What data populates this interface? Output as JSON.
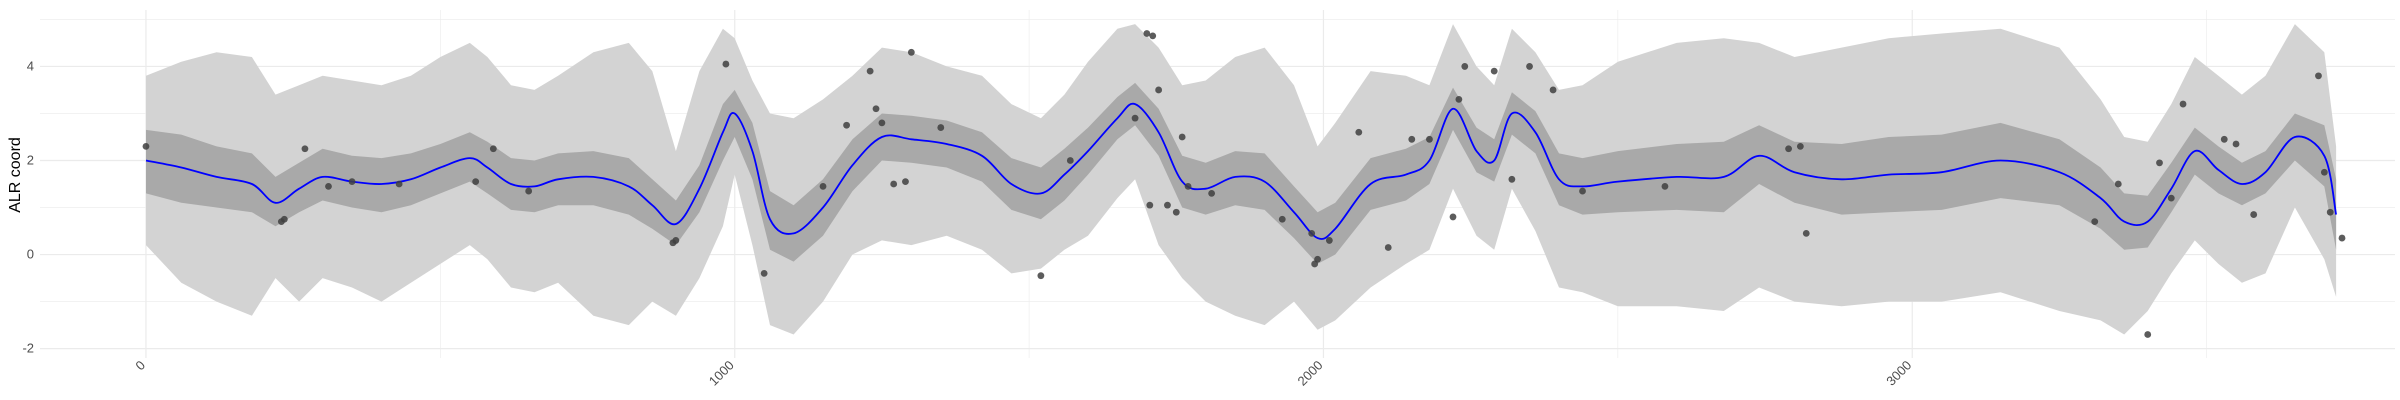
{
  "chart_data": {
    "type": "line",
    "title": "",
    "xlabel": "",
    "ylabel": "ALR coord",
    "xlim": [
      -180,
      3820
    ],
    "ylim": [
      -2.2,
      5.2
    ],
    "x_ticks": [
      0,
      1000,
      2000,
      3000
    ],
    "x_tick_labels": [
      "0",
      "1000",
      "2000",
      "3000"
    ],
    "y_ticks": [
      -2,
      0,
      2,
      4
    ],
    "y_tick_labels": [
      "-2",
      "0",
      "2",
      "4"
    ],
    "grid": true,
    "legend": "none",
    "colors": {
      "mean_line": "#0000ff",
      "inner_band": "#a9a9a9",
      "outer_band": "#d3d3d3",
      "points": "#404040",
      "grid": "#ebebeb"
    },
    "series": [
      {
        "kind": "mean",
        "x": [
          0,
          60,
          120,
          180,
          220,
          260,
          300,
          350,
          400,
          450,
          500,
          550,
          580,
          620,
          660,
          700,
          760,
          820,
          860,
          900,
          940,
          980,
          1000,
          1030,
          1060,
          1100,
          1150,
          1200,
          1250,
          1300,
          1360,
          1420,
          1470,
          1520,
          1560,
          1600,
          1650,
          1680,
          1720,
          1760,
          1800,
          1850,
          1900,
          1950,
          1990,
          2020,
          2080,
          2140,
          2180,
          2220,
          2260,
          2290,
          2320,
          2360,
          2400,
          2440,
          2500,
          2600,
          2680,
          2740,
          2800,
          2880,
          2960,
          3050,
          3150,
          3250,
          3320,
          3360,
          3400,
          3440,
          3480,
          3520,
          3560,
          3600,
          3650,
          3700,
          3720
        ],
        "y": [
          2.0,
          1.85,
          1.65,
          1.5,
          1.1,
          1.4,
          1.65,
          1.55,
          1.5,
          1.6,
          1.85,
          2.05,
          1.85,
          1.5,
          1.45,
          1.6,
          1.65,
          1.45,
          1.05,
          0.65,
          1.4,
          2.6,
          3.0,
          2.2,
          0.75,
          0.45,
          1.0,
          1.9,
          2.5,
          2.45,
          2.35,
          2.1,
          1.5,
          1.3,
          1.7,
          2.2,
          2.9,
          3.2,
          2.6,
          1.55,
          1.4,
          1.65,
          1.55,
          0.9,
          0.35,
          0.55,
          1.5,
          1.7,
          2.0,
          3.1,
          2.2,
          2.0,
          3.0,
          2.6,
          1.6,
          1.45,
          1.55,
          1.65,
          1.65,
          2.1,
          1.75,
          1.6,
          1.7,
          1.75,
          2.0,
          1.75,
          1.2,
          0.7,
          0.7,
          1.4,
          2.2,
          1.8,
          1.5,
          1.75,
          2.5,
          2.1,
          0.85
        ]
      },
      {
        "kind": "inner_band",
        "x": [
          0,
          60,
          120,
          180,
          220,
          260,
          300,
          350,
          400,
          450,
          500,
          550,
          580,
          620,
          660,
          700,
          760,
          820,
          860,
          900,
          940,
          980,
          1000,
          1030,
          1060,
          1100,
          1150,
          1200,
          1250,
          1300,
          1360,
          1420,
          1470,
          1520,
          1560,
          1600,
          1650,
          1680,
          1720,
          1760,
          1800,
          1850,
          1900,
          1950,
          1990,
          2020,
          2080,
          2140,
          2180,
          2220,
          2260,
          2290,
          2320,
          2360,
          2400,
          2440,
          2500,
          2600,
          2680,
          2740,
          2800,
          2880,
          2960,
          3050,
          3150,
          3250,
          3320,
          3360,
          3400,
          3440,
          3480,
          3520,
          3560,
          3600,
          3650,
          3700,
          3720
        ],
        "lower": [
          1.3,
          1.1,
          1.0,
          0.9,
          0.6,
          0.9,
          1.15,
          1.0,
          0.9,
          1.05,
          1.3,
          1.55,
          1.3,
          0.95,
          0.9,
          1.05,
          1.05,
          0.85,
          0.55,
          0.2,
          0.9,
          2.0,
          2.5,
          1.6,
          0.1,
          -0.15,
          0.4,
          1.35,
          2.0,
          1.95,
          1.85,
          1.55,
          0.95,
          0.75,
          1.15,
          1.7,
          2.45,
          2.75,
          2.1,
          1.0,
          0.85,
          1.05,
          0.95,
          0.35,
          -0.2,
          0.0,
          0.95,
          1.15,
          1.5,
          2.65,
          1.75,
          1.55,
          2.55,
          2.15,
          1.05,
          0.85,
          0.9,
          0.95,
          0.9,
          1.5,
          1.1,
          0.85,
          0.9,
          0.95,
          1.2,
          1.05,
          0.55,
          0.1,
          0.15,
          0.9,
          1.7,
          1.3,
          1.05,
          1.3,
          2.0,
          1.45,
          0.1
        ],
        "upper": [
          2.65,
          2.55,
          2.3,
          2.15,
          1.65,
          1.95,
          2.25,
          2.1,
          2.05,
          2.15,
          2.35,
          2.6,
          2.4,
          2.05,
          2.0,
          2.15,
          2.2,
          2.05,
          1.6,
          1.15,
          1.9,
          3.2,
          3.5,
          2.8,
          1.35,
          1.05,
          1.6,
          2.45,
          3.0,
          2.95,
          2.85,
          2.6,
          2.05,
          1.85,
          2.25,
          2.7,
          3.35,
          3.65,
          3.1,
          2.1,
          1.95,
          2.2,
          2.15,
          1.45,
          0.9,
          1.1,
          2.05,
          2.25,
          2.5,
          3.55,
          2.7,
          2.45,
          3.45,
          3.05,
          2.15,
          2.05,
          2.2,
          2.35,
          2.4,
          2.75,
          2.4,
          2.35,
          2.5,
          2.55,
          2.8,
          2.45,
          1.85,
          1.3,
          1.25,
          1.95,
          2.7,
          2.3,
          1.95,
          2.2,
          3.0,
          2.75,
          1.6
        ]
      },
      {
        "kind": "outer_band",
        "x": [
          0,
          60,
          120,
          180,
          220,
          260,
          300,
          350,
          400,
          450,
          500,
          550,
          580,
          620,
          660,
          700,
          760,
          820,
          860,
          900,
          940,
          980,
          1000,
          1030,
          1060,
          1100,
          1150,
          1200,
          1250,
          1300,
          1360,
          1420,
          1470,
          1520,
          1560,
          1600,
          1650,
          1680,
          1720,
          1760,
          1800,
          1850,
          1900,
          1950,
          1990,
          2020,
          2080,
          2140,
          2180,
          2220,
          2260,
          2290,
          2320,
          2360,
          2400,
          2440,
          2500,
          2600,
          2680,
          2740,
          2800,
          2880,
          2960,
          3050,
          3150,
          3250,
          3320,
          3360,
          3400,
          3440,
          3480,
          3520,
          3560,
          3600,
          3650,
          3700,
          3720
        ],
        "lower": [
          0.2,
          -0.6,
          -1.0,
          -1.3,
          -0.5,
          -1.0,
          -0.5,
          -0.7,
          -1.0,
          -0.6,
          -0.2,
          0.2,
          -0.1,
          -0.7,
          -0.8,
          -0.6,
          -1.3,
          -1.5,
          -1.0,
          -1.3,
          -0.5,
          0.6,
          1.7,
          0.2,
          -1.5,
          -1.7,
          -1.0,
          0.0,
          0.3,
          0.2,
          0.4,
          0.1,
          -0.4,
          -0.3,
          0.1,
          0.4,
          1.2,
          1.6,
          0.2,
          -0.5,
          -1.0,
          -1.3,
          -1.5,
          -1.0,
          -1.6,
          -1.4,
          -0.7,
          -0.2,
          0.1,
          1.4,
          0.4,
          0.1,
          1.4,
          0.5,
          -0.7,
          -0.8,
          -1.1,
          -1.1,
          -1.2,
          -0.7,
          -1.0,
          -1.1,
          -1.0,
          -1.0,
          -0.8,
          -1.2,
          -1.4,
          -1.7,
          -1.2,
          -0.4,
          0.3,
          -0.2,
          -0.6,
          -0.4,
          1.0,
          -0.1,
          -0.9
        ],
        "upper": [
          3.8,
          4.1,
          4.3,
          4.2,
          3.4,
          3.6,
          3.8,
          3.7,
          3.6,
          3.8,
          4.2,
          4.5,
          4.2,
          3.6,
          3.5,
          3.8,
          4.3,
          4.5,
          3.9,
          2.2,
          3.9,
          4.8,
          4.6,
          3.7,
          3.0,
          2.9,
          3.3,
          3.8,
          4.4,
          4.3,
          4.0,
          3.8,
          3.2,
          2.9,
          3.4,
          4.1,
          4.8,
          4.9,
          4.4,
          3.6,
          3.7,
          4.2,
          4.4,
          3.6,
          2.3,
          2.8,
          3.9,
          3.8,
          3.6,
          4.9,
          4.0,
          3.6,
          4.8,
          4.3,
          3.5,
          3.6,
          4.1,
          4.5,
          4.6,
          4.5,
          4.2,
          4.4,
          4.6,
          4.7,
          4.8,
          4.4,
          3.3,
          2.5,
          2.4,
          3.2,
          4.2,
          3.8,
          3.4,
          3.8,
          4.9,
          4.3,
          2.3
        ]
      }
    ],
    "points": {
      "x": [
        0,
        230,
        235,
        270,
        310,
        350,
        430,
        560,
        590,
        650,
        895,
        900,
        985,
        1050,
        1150,
        1190,
        1230,
        1240,
        1250,
        1270,
        1290,
        1300,
        1350,
        1520,
        1570,
        1680,
        1700,
        1705,
        1710,
        1720,
        1735,
        1750,
        1760,
        1770,
        1810,
        1930,
        1980,
        1985,
        1990,
        2010,
        2060,
        2110,
        2150,
        2180,
        2220,
        2230,
        2240,
        2290,
        2320,
        2350,
        2390,
        2440,
        2580,
        2790,
        2810,
        2820,
        3310,
        3350,
        3400,
        3420,
        3440,
        3460,
        3530,
        3550,
        3580,
        3690,
        3700,
        3710,
        3730
      ],
      "y": [
        2.3,
        0.7,
        0.75,
        2.25,
        1.45,
        1.55,
        1.5,
        1.55,
        2.25,
        1.35,
        0.25,
        0.3,
        4.05,
        -0.4,
        1.45,
        2.75,
        3.9,
        3.1,
        2.8,
        1.5,
        1.55,
        4.3,
        2.7,
        -0.45,
        2.0,
        2.9,
        4.7,
        1.05,
        4.65,
        3.5,
        1.05,
        0.9,
        2.5,
        1.45,
        1.3,
        0.75,
        0.45,
        -0.2,
        -0.1,
        0.3,
        2.6,
        0.15,
        2.45,
        2.45,
        0.8,
        3.3,
        4.0,
        3.9,
        1.6,
        4.0,
        3.5,
        1.35,
        1.45,
        2.25,
        2.3,
        0.45,
        0.7,
        1.5,
        -1.7,
        1.95,
        1.2,
        3.2,
        2.45,
        2.35,
        0.85,
        3.8,
        1.75,
        0.9,
        0.35
      ]
    }
  }
}
